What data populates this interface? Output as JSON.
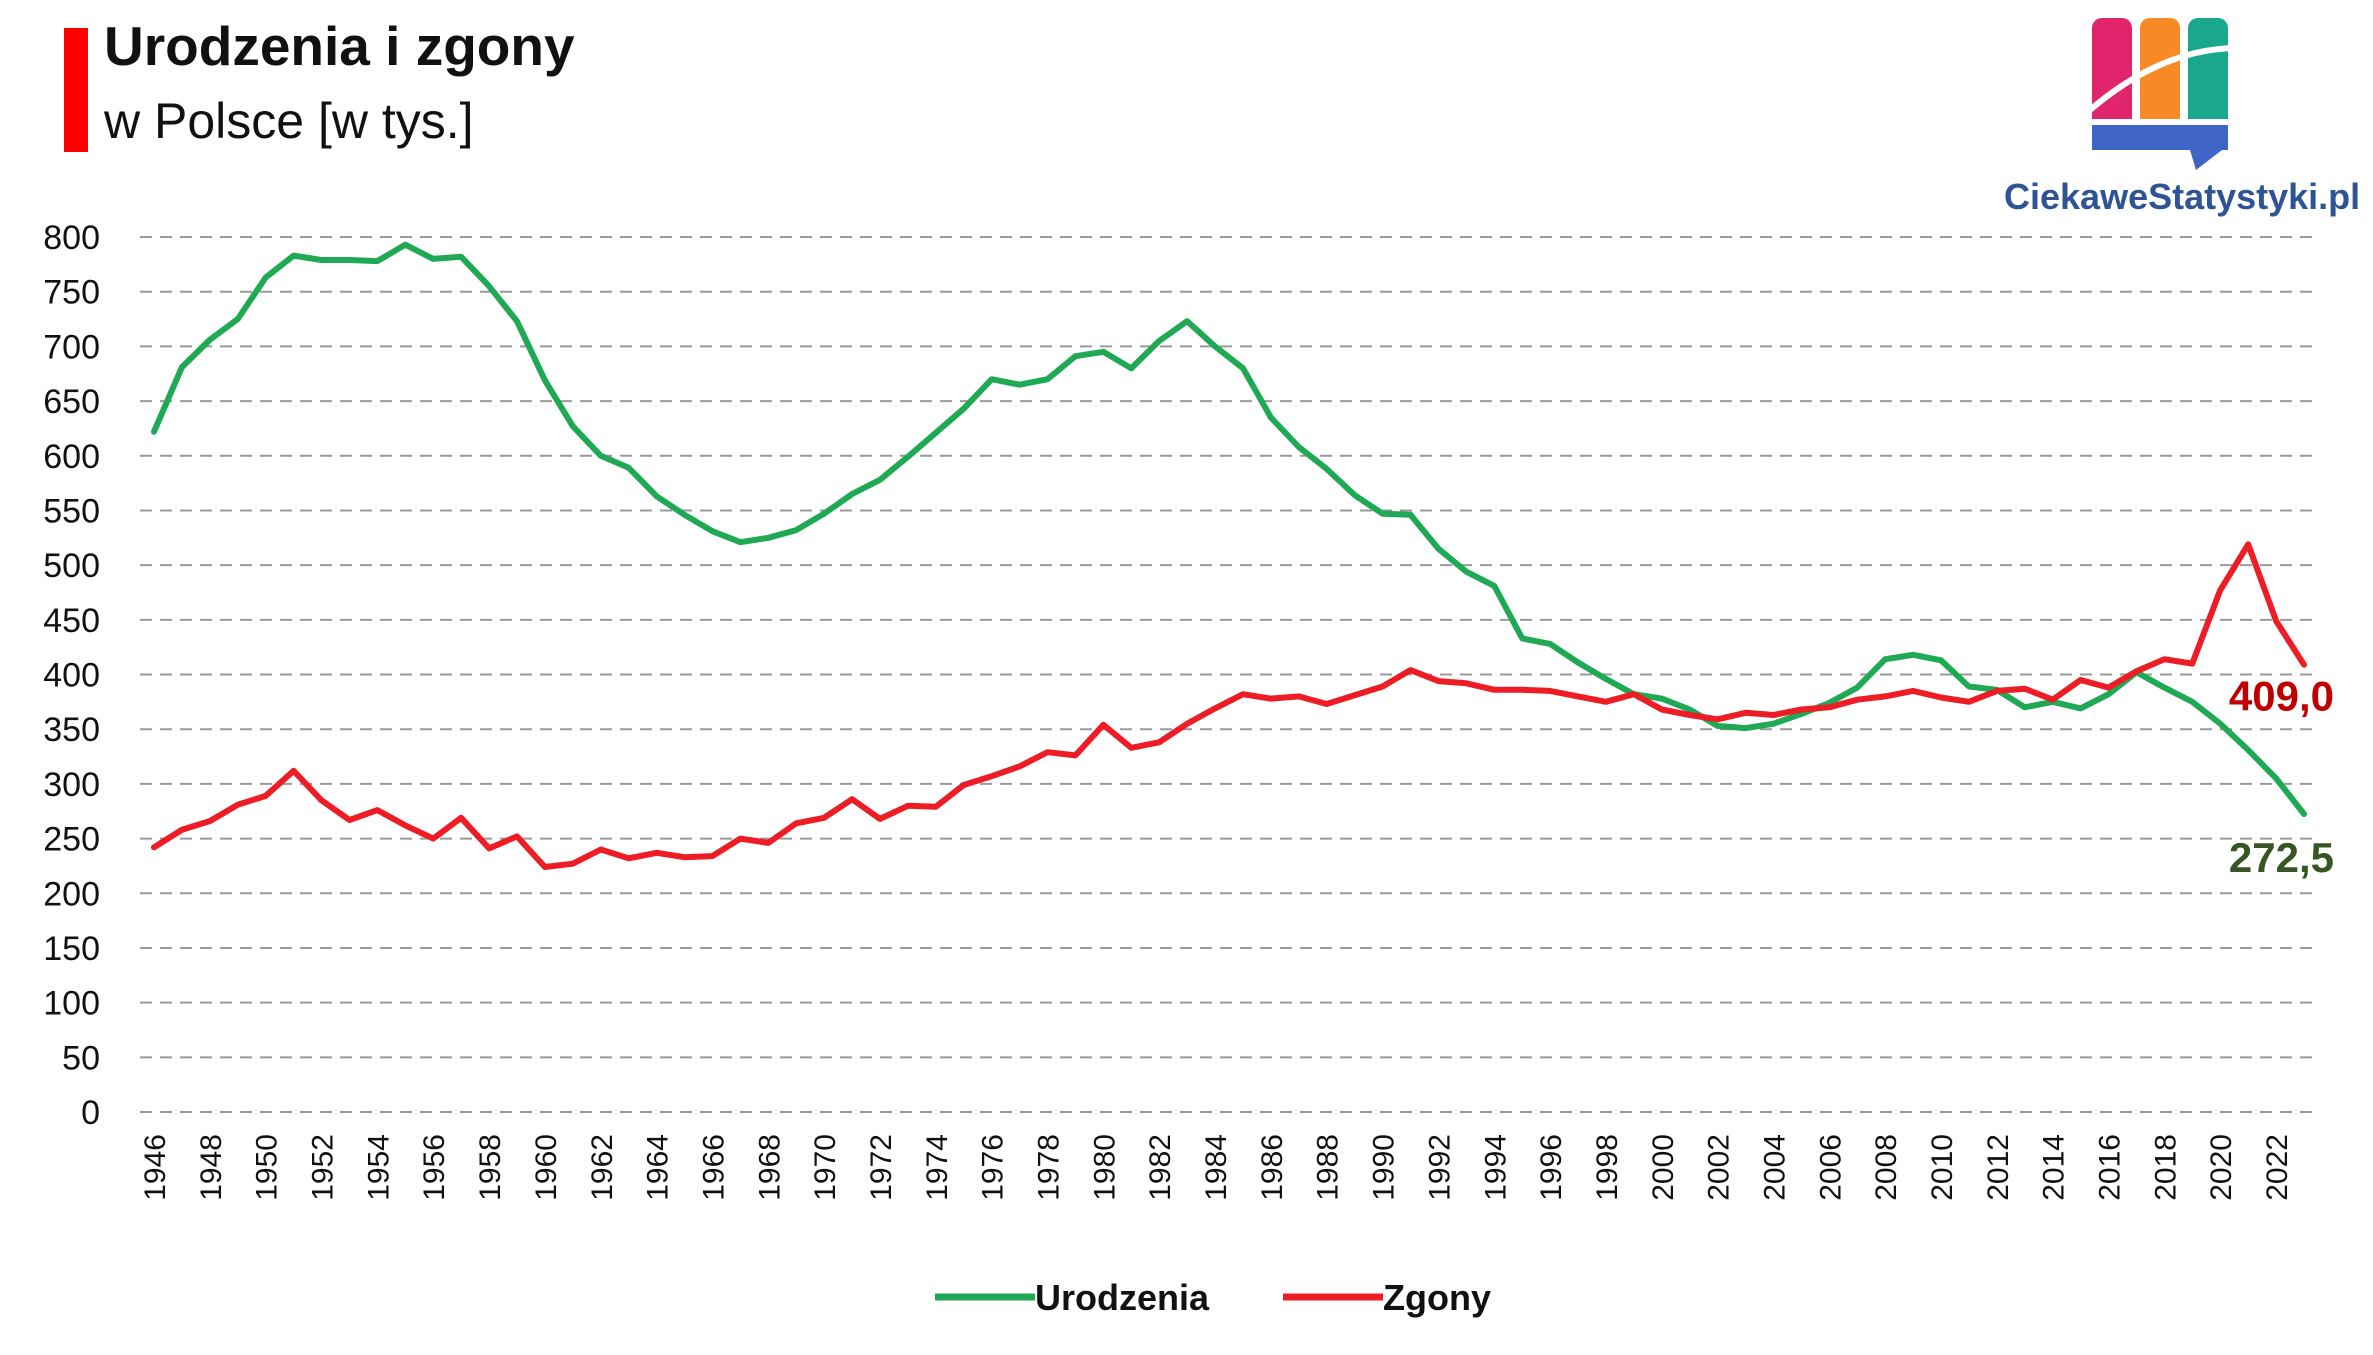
{
  "header": {
    "title": "Urodzenia i zgony",
    "subtitle": "w Polsce [w tys.]",
    "accent_color": "#ff0000"
  },
  "logo": {
    "text": "CiekaweStatystyki.pl",
    "text_color": "#2f5496"
  },
  "chart_data": {
    "type": "line",
    "title": "Urodzenia i zgony",
    "subtitle": "w Polsce [w tys.]",
    "xlabel": "",
    "ylabel": "",
    "ylim": [
      0,
      800
    ],
    "yticks": [
      0,
      50,
      100,
      150,
      200,
      250,
      300,
      350,
      400,
      450,
      500,
      550,
      600,
      650,
      700,
      750,
      800
    ],
    "xlim": [
      1946,
      2023
    ],
    "xtick_labels": [
      "1946",
      "1948",
      "1950",
      "1952",
      "1954",
      "1956",
      "1958",
      "1960",
      "1962",
      "1964",
      "1966",
      "1968",
      "1970",
      "1972",
      "1974",
      "1976",
      "1978",
      "1980",
      "1982",
      "1984",
      "1986",
      "1988",
      "1990",
      "1992",
      "1994",
      "1996",
      "1998",
      "2000",
      "2002",
      "2004",
      "2006",
      "2008",
      "2010",
      "2012",
      "2014",
      "2016",
      "2018",
      "2020",
      "2022"
    ],
    "grid": true,
    "grid_style": "dashed",
    "legend_position": "bottom",
    "x": [
      1946,
      1947,
      1948,
      1949,
      1950,
      1951,
      1952,
      1953,
      1954,
      1955,
      1956,
      1957,
      1958,
      1959,
      1960,
      1961,
      1962,
      1963,
      1964,
      1965,
      1966,
      1967,
      1968,
      1969,
      1970,
      1971,
      1972,
      1973,
      1974,
      1975,
      1976,
      1977,
      1978,
      1979,
      1980,
      1981,
      1982,
      1983,
      1984,
      1985,
      1986,
      1987,
      1988,
      1989,
      1990,
      1991,
      1992,
      1993,
      1994,
      1995,
      1996,
      1997,
      1998,
      1999,
      2000,
      2001,
      2002,
      2003,
      2004,
      2005,
      2006,
      2007,
      2008,
      2009,
      2010,
      2011,
      2012,
      2013,
      2014,
      2015,
      2016,
      2017,
      2018,
      2019,
      2020,
      2021,
      2022,
      2023
    ],
    "series": [
      {
        "name": "Urodzenia",
        "color": "#1fa954",
        "values": [
          622,
          681,
          706,
          725,
          763,
          783,
          779,
          779,
          778,
          793,
          780,
          782,
          755,
          723,
          669,
          627,
          600,
          589,
          563,
          546,
          531,
          521,
          525,
          532,
          547,
          565,
          578,
          599,
          621,
          643,
          670,
          665,
          670,
          691,
          695,
          680,
          705,
          723,
          700,
          680,
          635,
          608,
          588,
          564,
          547,
          546,
          515,
          494,
          481,
          433,
          428,
          411,
          396,
          382,
          378,
          368,
          353,
          351,
          355,
          364,
          374,
          388,
          414,
          418,
          413,
          389,
          386,
          370,
          375,
          369,
          382,
          402,
          388,
          375,
          355,
          331,
          305,
          272.5
        ]
      },
      {
        "name": "Zgony",
        "color": "#ee1c25",
        "values": [
          242,
          258,
          266,
          281,
          289,
          312,
          285,
          267,
          276,
          262,
          250,
          269,
          241,
          252,
          224,
          227,
          240,
          232,
          237,
          233,
          234,
          250,
          246,
          264,
          269,
          286,
          268,
          280,
          279,
          299,
          307,
          316,
          329,
          326,
          354,
          333,
          338,
          355,
          369,
          382,
          378,
          380,
          373,
          381,
          389,
          404,
          394,
          392,
          386,
          386,
          385,
          380,
          375,
          382,
          368,
          363,
          359,
          365,
          363,
          368,
          370,
          377,
          380,
          385,
          379,
          375,
          385,
          387,
          377,
          395,
          388,
          403,
          414,
          410,
          477,
          519,
          449,
          409.0
        ]
      }
    ],
    "annotations": [
      {
        "series": "Zgony",
        "x": 2023,
        "text": "409,0",
        "color": "#c00000"
      },
      {
        "series": "Urodzenia",
        "x": 2023,
        "text": "272,5",
        "color": "#375623"
      }
    ]
  }
}
